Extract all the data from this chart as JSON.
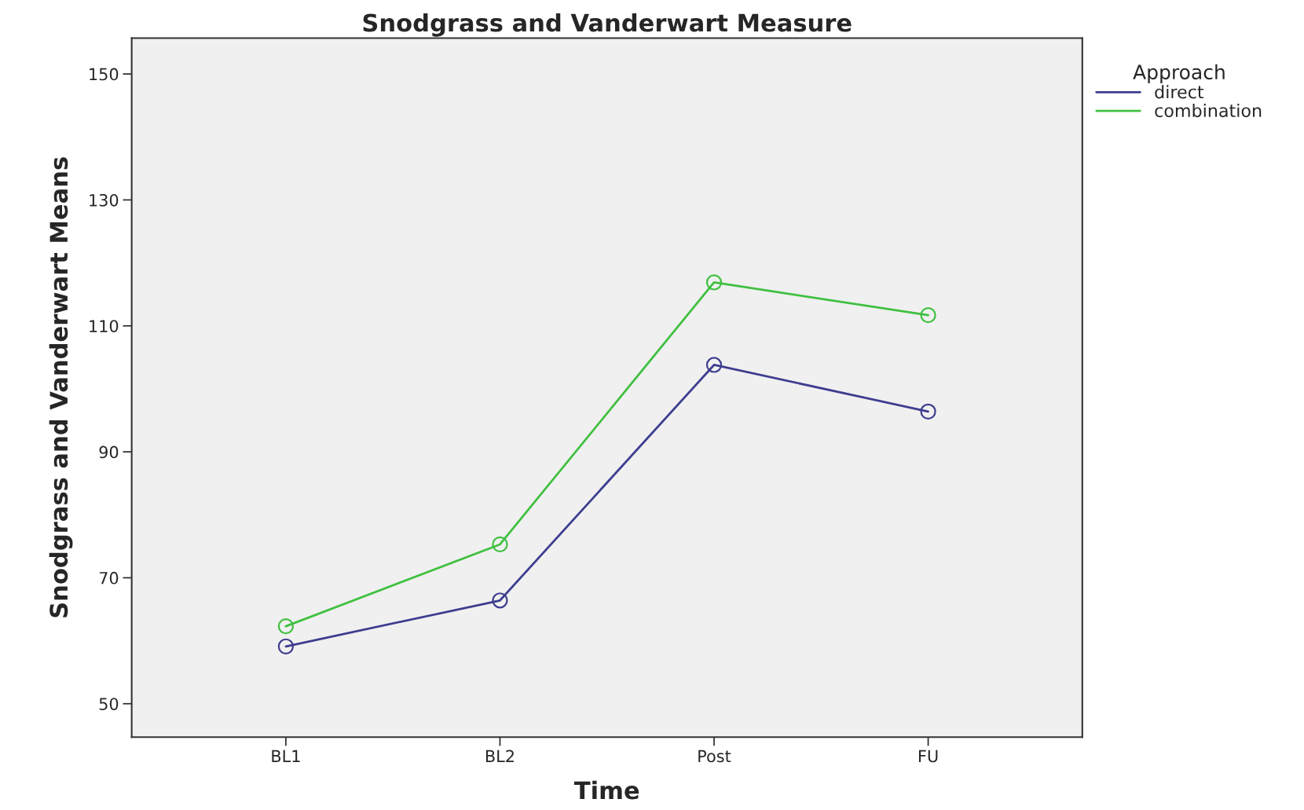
{
  "chart_data": {
    "type": "line",
    "title": "Snodgrass and Vanderwart Measure",
    "xlabel": "Time",
    "ylabel": "Snodgrass and Vanderwart Means",
    "legend_title": "Approach",
    "categories": [
      "BL1",
      "BL2",
      "Post",
      "FU"
    ],
    "series": [
      {
        "name": "direct",
        "color": "#3d3d90",
        "values": [
          59.1,
          66.4,
          103.8,
          96.4
        ]
      },
      {
        "name": "combination",
        "color": "#40c040",
        "values": [
          62.3,
          75.3,
          116.9,
          111.7
        ]
      }
    ],
    "ylim": [
      44.7,
      155.7
    ],
    "yticks": [
      50,
      70,
      90,
      110,
      130,
      150
    ],
    "grid": false,
    "legend": "top right",
    "marker": "circle",
    "line_style": "solid"
  }
}
